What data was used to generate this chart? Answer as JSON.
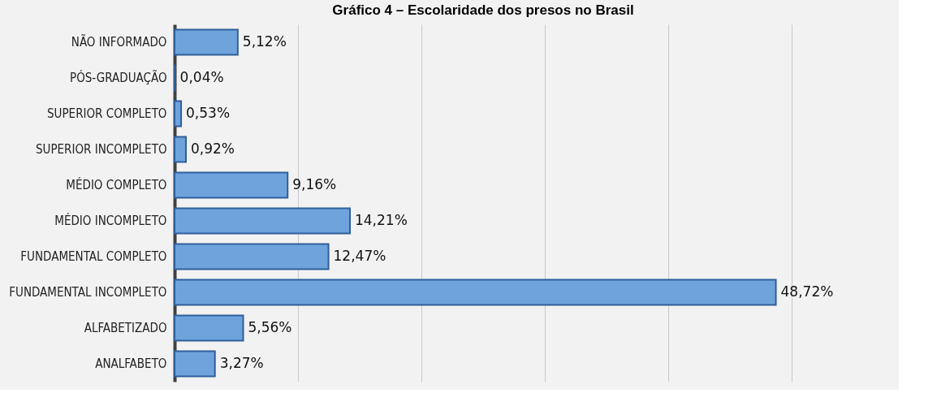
{
  "chart_data": {
    "type": "bar",
    "orientation": "horizontal",
    "title": "Gráfico 4 – Escolaridade dos presos no Brasil",
    "categories": [
      "NÃO INFORMADO",
      "PÓS-GRADUAÇÃO",
      "SUPERIOR COMPLETO",
      "SUPERIOR INCOMPLETO",
      "MÉDIO COMPLETO",
      "MÉDIO INCOMPLETO",
      "FUNDAMENTAL COMPLETO",
      "FUNDAMENTAL INCOMPLETO",
      "ALFABETIZADO",
      "ANALFABETO"
    ],
    "values": [
      5.12,
      0.04,
      0.53,
      0.92,
      9.16,
      14.21,
      12.47,
      48.72,
      5.56,
      3.27
    ],
    "value_labels": [
      "5,12%",
      "0,04%",
      "0,53%",
      "0,92%",
      "9,16%",
      "14,21%",
      "12,47%",
      "48,72%",
      "5,56%",
      "3,27%"
    ],
    "color": "#6fa3dc",
    "xlim": [
      0,
      50
    ],
    "xticks": [
      {
        "value": 10,
        "label": null
      },
      {
        "value": 20,
        "label": null
      },
      {
        "value": 30,
        "label": null
      },
      {
        "value": 40,
        "label": null
      },
      {
        "value": 50,
        "label": null
      }
    ],
    "grid": "x",
    "tick_labels": "y"
  }
}
